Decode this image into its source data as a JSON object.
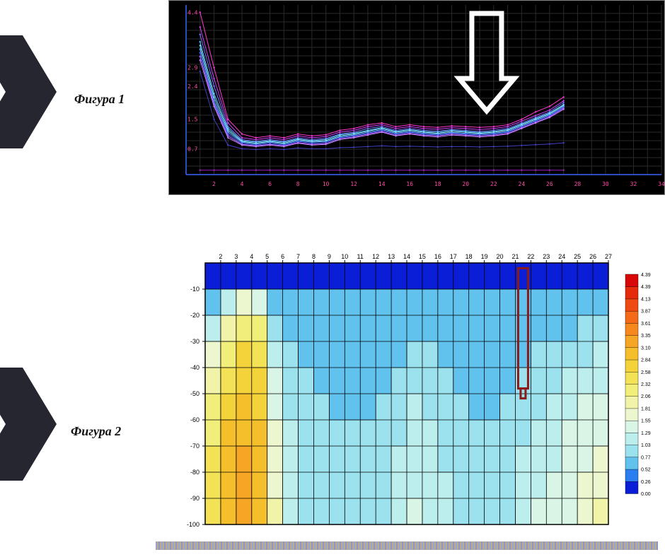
{
  "labels": {
    "fig1": "Фигура 1",
    "fig2": "Фигура 2"
  },
  "chart1": {
    "type": "line",
    "background": "#000000",
    "grid_color": "#2a2a2a",
    "axis_color": "#3a66ff",
    "tick_color": "#ff4da6",
    "xlim": [
      0,
      34
    ],
    "ylim": [
      0,
      4.6
    ],
    "xticks": [
      2,
      4,
      6,
      8,
      10,
      12,
      14,
      16,
      18,
      20,
      22,
      24,
      26,
      28,
      30,
      32,
      34
    ],
    "yticks": [
      0.7,
      1.5,
      2.4,
      2.9,
      4.4
    ],
    "tick_fontsize": 8,
    "series": [
      {
        "color": "#ff3ad0",
        "y": [
          4.4,
          2.9,
          1.5,
          1.1,
          1.0,
          1.05,
          1.0,
          1.1,
          1.05,
          1.08,
          1.2,
          1.25,
          1.35,
          1.4,
          1.3,
          1.35,
          1.3,
          1.28,
          1.32,
          1.3,
          1.28,
          1.3,
          1.35,
          1.5,
          1.7,
          1.85,
          2.1
        ]
      },
      {
        "color": "#d040ff",
        "y": [
          4.0,
          2.6,
          1.4,
          1.0,
          0.95,
          1.0,
          0.95,
          1.05,
          1.0,
          1.03,
          1.15,
          1.2,
          1.3,
          1.35,
          1.25,
          1.3,
          1.25,
          1.23,
          1.27,
          1.25,
          1.22,
          1.25,
          1.3,
          1.45,
          1.6,
          1.75,
          2.0
        ]
      },
      {
        "color": "#7a7aff",
        "y": [
          3.8,
          2.4,
          1.3,
          0.95,
          0.9,
          0.95,
          0.9,
          1.0,
          0.95,
          0.98,
          1.1,
          1.15,
          1.25,
          1.3,
          1.2,
          1.25,
          1.2,
          1.18,
          1.22,
          1.2,
          1.17,
          1.2,
          1.25,
          1.4,
          1.55,
          1.7,
          1.95
        ]
      },
      {
        "color": "#5ac8ff",
        "y": [
          3.6,
          2.2,
          1.25,
          0.92,
          0.88,
          0.92,
          0.88,
          0.97,
          0.92,
          0.95,
          1.08,
          1.12,
          1.2,
          1.27,
          1.17,
          1.22,
          1.17,
          1.15,
          1.2,
          1.17,
          1.14,
          1.17,
          1.22,
          1.37,
          1.52,
          1.67,
          1.9
        ]
      },
      {
        "color": "#86e2ff",
        "y": [
          3.5,
          2.1,
          1.2,
          0.9,
          0.85,
          0.9,
          0.85,
          0.95,
          0.9,
          0.92,
          1.05,
          1.1,
          1.18,
          1.25,
          1.15,
          1.2,
          1.15,
          1.12,
          1.17,
          1.15,
          1.12,
          1.15,
          1.2,
          1.35,
          1.5,
          1.65,
          1.88
        ]
      },
      {
        "color": "#66b2ff",
        "y": [
          3.4,
          2.0,
          1.15,
          0.88,
          0.83,
          0.88,
          0.83,
          0.92,
          0.88,
          0.9,
          1.02,
          1.07,
          1.15,
          1.22,
          1.12,
          1.17,
          1.12,
          1.1,
          1.14,
          1.12,
          1.1,
          1.12,
          1.17,
          1.32,
          1.47,
          1.62,
          1.85
        ]
      },
      {
        "color": "#4060ff",
        "y": [
          3.3,
          1.95,
          1.1,
          0.85,
          0.8,
          0.85,
          0.8,
          0.9,
          0.85,
          0.87,
          1.0,
          1.05,
          1.12,
          1.2,
          1.1,
          1.15,
          1.1,
          1.07,
          1.12,
          1.1,
          1.07,
          1.1,
          1.15,
          1.3,
          1.45,
          1.6,
          1.82
        ]
      },
      {
        "color": "#b366ff",
        "y": [
          3.2,
          1.9,
          1.05,
          0.82,
          0.78,
          0.82,
          0.78,
          0.87,
          0.82,
          0.84,
          0.97,
          1.02,
          1.1,
          1.17,
          1.07,
          1.12,
          1.07,
          1.05,
          1.1,
          1.07,
          1.05,
          1.07,
          1.12,
          1.27,
          1.42,
          1.57,
          1.8
        ]
      },
      {
        "color": "#c080ff",
        "y": [
          3.1,
          1.85,
          1.0,
          0.8,
          0.76,
          0.8,
          0.76,
          0.85,
          0.8,
          0.82,
          0.95,
          1.0,
          1.07,
          1.15,
          1.05,
          1.1,
          1.05,
          1.02,
          1.07,
          1.05,
          1.02,
          1.05,
          1.1,
          1.25,
          1.4,
          1.55,
          1.77
        ]
      },
      {
        "color": "#4040c0",
        "y": [
          2.8,
          1.5,
          0.8,
          0.7,
          0.68,
          0.7,
          0.68,
          0.72,
          0.7,
          0.7,
          0.73,
          0.74,
          0.76,
          0.78,
          0.76,
          0.77,
          0.76,
          0.75,
          0.76,
          0.76,
          0.75,
          0.76,
          0.77,
          0.79,
          0.81,
          0.83,
          0.86
        ]
      },
      {
        "color": "#a020c0",
        "y": [
          0.12,
          0.12,
          0.12,
          0.12,
          0.12,
          0.12,
          0.12,
          0.12,
          0.12,
          0.12,
          0.12,
          0.12,
          0.12,
          0.12,
          0.12,
          0.12,
          0.12,
          0.12,
          0.12,
          0.12,
          0.12,
          0.12,
          0.12,
          0.12,
          0.12,
          0.12,
          0.12
        ]
      }
    ],
    "arrow": {
      "x": 21.5,
      "stroke": "#ffffff",
      "stroke_width": 7
    }
  },
  "chart2": {
    "type": "heatmap",
    "background": "#ffffff",
    "grid_color": "#000000",
    "axis_color": "#000000",
    "tick_fontsize": 9,
    "xlim": [
      1,
      27
    ],
    "ylim": [
      -100,
      0
    ],
    "xticks": [
      2,
      3,
      4,
      5,
      6,
      7,
      8,
      9,
      10,
      11,
      12,
      13,
      14,
      15,
      16,
      17,
      18,
      19,
      20,
      21,
      22,
      23,
      24,
      25,
      26,
      27
    ],
    "yticks": [
      -10,
      -20,
      -30,
      -40,
      -50,
      -60,
      -70,
      -80,
      -90,
      -100
    ],
    "palette": [
      {
        "v": 0.0,
        "c": "#0a1ed8"
      },
      {
        "v": 0.26,
        "c": "#2b7ef0"
      },
      {
        "v": 0.52,
        "c": "#62c2ee"
      },
      {
        "v": 0.77,
        "c": "#9be1ee"
      },
      {
        "v": 1.03,
        "c": "#bdeeee"
      },
      {
        "v": 1.29,
        "c": "#d8f5e5"
      },
      {
        "v": 1.55,
        "c": "#ecf7cf"
      },
      {
        "v": 1.81,
        "c": "#f0f3a8"
      },
      {
        "v": 2.06,
        "c": "#f2ee7a"
      },
      {
        "v": 2.32,
        "c": "#f3e256"
      },
      {
        "v": 2.58,
        "c": "#f4d33a"
      },
      {
        "v": 2.84,
        "c": "#f5bf2c"
      },
      {
        "v": 3.1,
        "c": "#f6a524"
      },
      {
        "v": 3.35,
        "c": "#f7881e"
      },
      {
        "v": 3.61,
        "c": "#f56a18"
      },
      {
        "v": 3.87,
        "c": "#ef4a12"
      },
      {
        "v": 4.13,
        "c": "#e62a0c"
      },
      {
        "v": 4.39,
        "c": "#d90808"
      }
    ],
    "cells": {
      "rows": 10,
      "cols": 26,
      "values": [
        [
          0.08,
          0.08,
          0.1,
          0.1,
          0.1,
          0.1,
          0.1,
          0.1,
          0.1,
          0.1,
          0.1,
          0.1,
          0.1,
          0.1,
          0.1,
          0.1,
          0.1,
          0.1,
          0.1,
          0.1,
          0.1,
          0.1,
          0.1,
          0.1,
          0.1,
          0.1
        ],
        [
          0.6,
          1.1,
          1.8,
          1.5,
          0.7,
          0.55,
          0.55,
          0.55,
          0.55,
          0.55,
          0.55,
          0.55,
          0.58,
          0.6,
          0.58,
          0.58,
          0.55,
          0.55,
          0.55,
          0.56,
          0.58,
          0.58,
          0.58,
          0.6,
          0.62,
          0.64
        ],
        [
          1.2,
          1.9,
          2.3,
          2.1,
          1.0,
          0.7,
          0.65,
          0.65,
          0.63,
          0.62,
          0.62,
          0.63,
          0.68,
          0.72,
          0.7,
          0.68,
          0.65,
          0.63,
          0.62,
          0.63,
          0.66,
          0.68,
          0.7,
          0.75,
          0.8,
          0.85
        ],
        [
          1.6,
          2.2,
          2.6,
          2.4,
          1.2,
          0.8,
          0.72,
          0.7,
          0.68,
          0.66,
          0.66,
          0.68,
          0.75,
          0.82,
          0.78,
          0.74,
          0.7,
          0.68,
          0.66,
          0.68,
          0.74,
          0.78,
          0.82,
          0.9,
          0.98,
          1.05
        ],
        [
          1.9,
          2.5,
          2.8,
          2.6,
          1.4,
          0.9,
          0.8,
          0.76,
          0.72,
          0.7,
          0.7,
          0.74,
          0.85,
          0.95,
          0.9,
          0.82,
          0.76,
          0.72,
          0.7,
          0.74,
          0.84,
          0.9,
          0.96,
          1.05,
          1.15,
          1.25
        ],
        [
          2.1,
          2.7,
          2.95,
          2.75,
          1.55,
          0.98,
          0.86,
          0.8,
          0.76,
          0.74,
          0.74,
          0.8,
          0.94,
          1.05,
          1.0,
          0.9,
          0.82,
          0.77,
          0.75,
          0.8,
          0.94,
          1.02,
          1.08,
          1.18,
          1.3,
          1.4
        ],
        [
          2.25,
          2.85,
          3.05,
          2.85,
          1.65,
          1.04,
          0.9,
          0.84,
          0.8,
          0.78,
          0.78,
          0.85,
          1.02,
          1.14,
          1.08,
          0.96,
          0.87,
          0.82,
          0.8,
          0.86,
          1.02,
          1.12,
          1.18,
          1.3,
          1.44,
          1.55
        ],
        [
          2.35,
          2.95,
          3.12,
          2.92,
          1.72,
          1.08,
          0.94,
          0.87,
          0.83,
          0.81,
          0.82,
          0.9,
          1.08,
          1.22,
          1.15,
          1.02,
          0.92,
          0.86,
          0.84,
          0.92,
          1.1,
          1.2,
          1.27,
          1.4,
          1.55,
          1.68
        ],
        [
          2.42,
          3.02,
          3.18,
          2.98,
          1.78,
          1.12,
          0.97,
          0.9,
          0.86,
          0.84,
          0.85,
          0.94,
          1.14,
          1.28,
          1.2,
          1.07,
          0.96,
          0.9,
          0.88,
          0.97,
          1.16,
          1.27,
          1.35,
          1.48,
          1.64,
          1.78
        ],
        [
          2.48,
          3.08,
          3.22,
          3.02,
          1.82,
          1.15,
          1.0,
          0.92,
          0.88,
          0.86,
          0.88,
          0.98,
          1.18,
          1.33,
          1.24,
          1.1,
          0.99,
          0.93,
          0.91,
          1.0,
          1.22,
          1.33,
          1.42,
          1.55,
          1.72,
          1.86
        ]
      ]
    },
    "marker": {
      "x": 21.5,
      "y_top": -2,
      "y_bot": -48,
      "stroke": "#8b1a1a",
      "stroke_width": 3
    }
  }
}
